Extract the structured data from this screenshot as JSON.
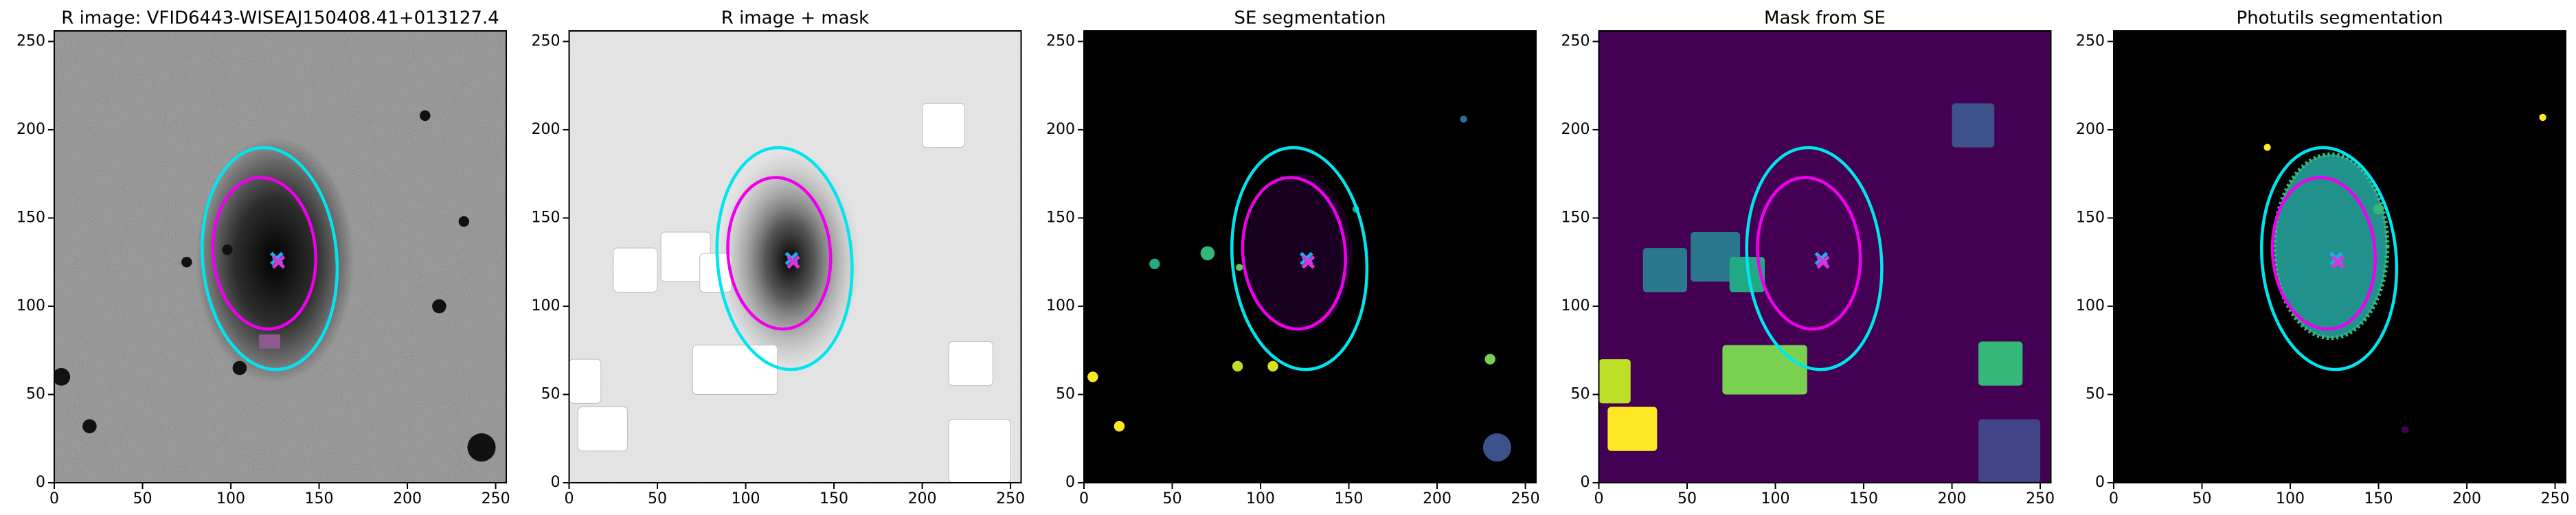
{
  "chart_data": [
    {
      "type": "image",
      "title": "R image: VFID6443-WISEAJ150408.41+013127.4",
      "xlim": [
        0,
        256
      ],
      "ylim": [
        0,
        256
      ],
      "xticks": [
        0,
        50,
        100,
        150,
        200,
        250
      ],
      "yticks": [
        0,
        50,
        100,
        150,
        200,
        250
      ]
    },
    {
      "type": "image",
      "title": "R image + mask",
      "xlim": [
        0,
        256
      ],
      "ylim": [
        0,
        256
      ],
      "xticks": [
        0,
        50,
        100,
        150,
        200,
        250
      ],
      "yticks": [
        0,
        50,
        100,
        150,
        200,
        250
      ]
    },
    {
      "type": "image",
      "title": "SE segmentation",
      "xlim": [
        0,
        256
      ],
      "ylim": [
        0,
        256
      ],
      "xticks": [
        0,
        50,
        100,
        150,
        200,
        250
      ],
      "yticks": [
        0,
        50,
        100,
        150,
        200,
        250
      ]
    },
    {
      "type": "image",
      "title": "Mask from SE",
      "xlim": [
        0,
        256
      ],
      "ylim": [
        0,
        256
      ],
      "xticks": [
        0,
        50,
        100,
        150,
        200,
        250
      ],
      "yticks": [
        0,
        50,
        100,
        150,
        200,
        250
      ]
    },
    {
      "type": "image",
      "title": "Photutils segmentation",
      "xlim": [
        0,
        256
      ],
      "ylim": [
        0,
        256
      ],
      "xticks": [
        0,
        50,
        100,
        150,
        200,
        250
      ],
      "yticks": [
        0,
        50,
        100,
        150,
        200,
        250
      ]
    }
  ]
}
